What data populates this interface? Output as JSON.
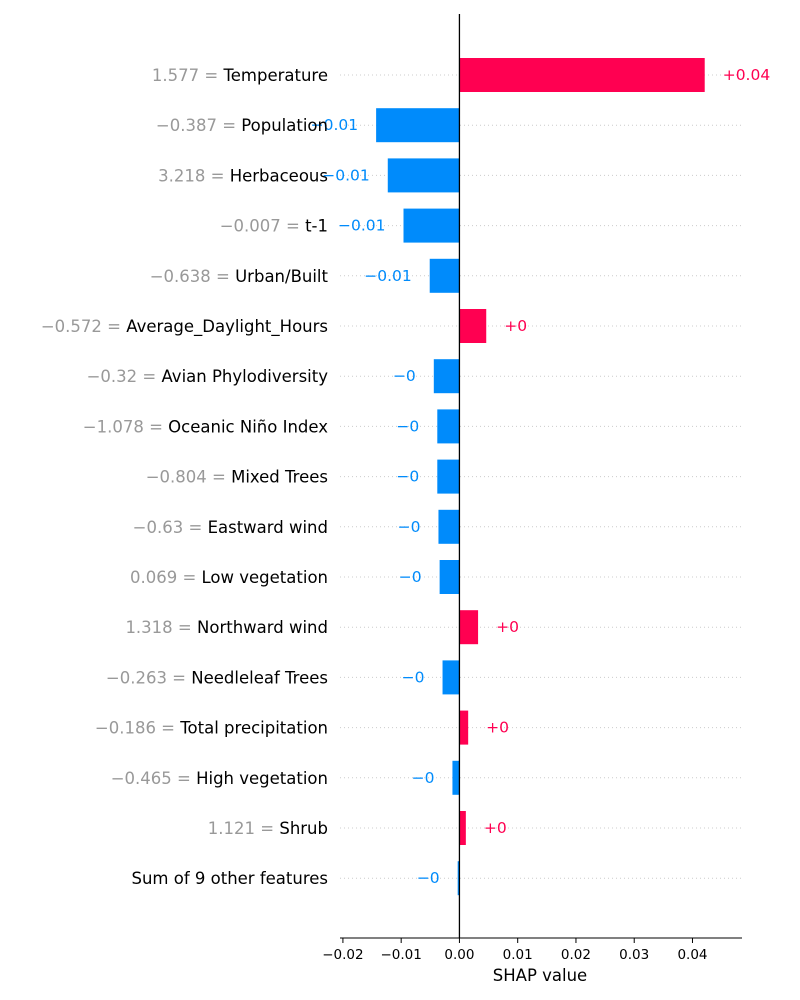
{
  "chart_data": {
    "type": "bar",
    "orientation": "horizontal",
    "xlabel": "SHAP value",
    "xlim": [
      -0.0205,
      0.0485
    ],
    "xticks": [
      -0.02,
      -0.01,
      0.0,
      0.01,
      0.02,
      0.03,
      0.04
    ],
    "xtick_labels": [
      "−0.02",
      "−0.01",
      "0.00",
      "0.01",
      "0.02",
      "0.03",
      "0.04"
    ],
    "grid": "dotted horizontal row guides",
    "colors": {
      "positive": "#ff0051",
      "negative": "#008bfb",
      "feature_value": "#999999",
      "zero_line": "#000000"
    },
    "rows": [
      {
        "feature": "Temperature",
        "feature_value": "1.577",
        "shap": 0.0421,
        "label": "+0.04"
      },
      {
        "feature": "Population",
        "feature_value": "−0.387",
        "shap": -0.0143,
        "label": "−0.01"
      },
      {
        "feature": "Herbaceous",
        "feature_value": "3.218",
        "shap": -0.0123,
        "label": "−0.01"
      },
      {
        "feature": "t-1",
        "feature_value": "−0.007",
        "shap": -0.0096,
        "label": "−0.01"
      },
      {
        "feature": "Urban/Built",
        "feature_value": "−0.638",
        "shap": -0.0051,
        "label": "−0.01"
      },
      {
        "feature": "Average_Daylight_Hours",
        "feature_value": "−0.572",
        "shap": 0.0046,
        "label": "+0"
      },
      {
        "feature": "Avian Phylodiversity",
        "feature_value": "−0.32",
        "shap": -0.0044,
        "label": "−0"
      },
      {
        "feature": "Oceanic Niño Index",
        "feature_value": "−1.078",
        "shap": -0.0038,
        "label": "−0"
      },
      {
        "feature": "Mixed Trees",
        "feature_value": "−0.804",
        "shap": -0.0038,
        "label": "−0"
      },
      {
        "feature": "Eastward wind",
        "feature_value": "−0.63",
        "shap": -0.0036,
        "label": "−0"
      },
      {
        "feature": "Low vegetation",
        "feature_value": "0.069",
        "shap": -0.0034,
        "label": "−0"
      },
      {
        "feature": "Northward wind",
        "feature_value": "1.318",
        "shap": 0.0032,
        "label": "+0"
      },
      {
        "feature": "Needleleaf Trees",
        "feature_value": "−0.263",
        "shap": -0.0029,
        "label": "−0"
      },
      {
        "feature": "Total precipitation",
        "feature_value": "−0.186",
        "shap": 0.0015,
        "label": "+0"
      },
      {
        "feature": "High vegetation",
        "feature_value": "−0.465",
        "shap": -0.0012,
        "label": "−0"
      },
      {
        "feature": "Shrub",
        "feature_value": "1.121",
        "shap": 0.0011,
        "label": "+0"
      },
      {
        "feature": "Sum of 9 other features",
        "feature_value": "",
        "shap": -0.0003,
        "label": "−0"
      }
    ]
  }
}
